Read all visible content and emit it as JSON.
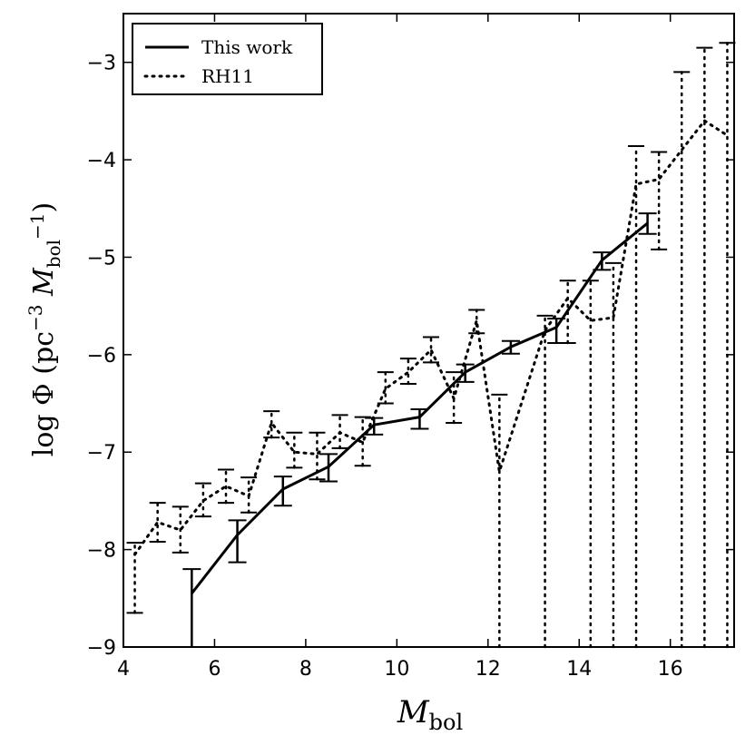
{
  "chart_data": {
    "type": "line",
    "title": "",
    "xlabel": {
      "main": "M",
      "sub": "bol"
    },
    "ylabel": {
      "prefix": "log Φ (pc",
      "exp1": "−3",
      "mid": " M",
      "sub": "bol",
      "exp2": "−1",
      "suffix": ")"
    },
    "xlim": [
      4,
      17.4
    ],
    "ylim": [
      -9,
      -2.5
    ],
    "xticks": [
      4,
      6,
      8,
      10,
      12,
      14,
      16
    ],
    "yticks": [
      -9,
      -8,
      -7,
      -6,
      -5,
      -4,
      -3
    ],
    "xtick_labels": [
      "4",
      "6",
      "8",
      "10",
      "12",
      "14",
      "16"
    ],
    "ytick_labels": [
      "−9",
      "−8",
      "−7",
      "−6",
      "−5",
      "−4",
      "−3"
    ],
    "legend": {
      "placement": "top-left",
      "entries": [
        {
          "label": "This work",
          "style": "solid"
        },
        {
          "label": "RH11",
          "style": "dotted"
        }
      ]
    },
    "series": [
      {
        "name": "This work",
        "style": "solid",
        "x": [
          5.5,
          6.5,
          7.5,
          8.5,
          9.5,
          10.5,
          11.5,
          12.5,
          13.5,
          14.5,
          15.5
        ],
        "y": [
          -8.45,
          -7.85,
          -7.38,
          -7.15,
          -6.72,
          -6.64,
          -6.18,
          -5.92,
          -5.72,
          -5.03,
          -4.65
        ],
        "yerr_low": [
          -9.0,
          -8.13,
          -7.55,
          -7.3,
          -6.82,
          -6.76,
          -6.28,
          -5.99,
          -5.88,
          -5.13,
          -4.76
        ],
        "yerr_high": [
          -8.2,
          -7.7,
          -7.25,
          -7.02,
          -6.65,
          -6.56,
          -6.1,
          -5.86,
          -5.63,
          -4.95,
          -4.55
        ]
      },
      {
        "name": "RH11",
        "style": "dotted",
        "x": [
          4.25,
          4.75,
          5.25,
          5.75,
          6.25,
          6.75,
          7.25,
          7.75,
          8.25,
          8.75,
          9.25,
          9.75,
          10.25,
          10.75,
          11.25,
          11.75,
          12.25,
          13.25,
          13.75,
          14.25,
          14.75,
          15.25,
          15.75,
          16.25,
          16.75,
          17.25
        ],
        "y": [
          -8.05,
          -7.72,
          -7.8,
          -7.5,
          -7.35,
          -7.45,
          -6.7,
          -7.0,
          -7.02,
          -6.8,
          -6.9,
          -6.35,
          -6.18,
          -5.95,
          -6.45,
          -5.65,
          -7.2,
          -5.75,
          -5.42,
          -5.65,
          -5.62,
          -4.25,
          -4.2,
          -3.9,
          -3.6,
          -3.75
        ],
        "yerr_low": [
          -8.65,
          -7.92,
          -8.03,
          -7.66,
          -7.52,
          -7.62,
          -6.85,
          -7.16,
          -7.28,
          -6.96,
          -7.14,
          -6.5,
          -6.3,
          -6.08,
          -6.7,
          -5.78,
          -9.0,
          -9.0,
          -5.88,
          -9.0,
          -9.0,
          -9.0,
          -4.92,
          -9.0,
          -9.0,
          -9.0
        ],
        "yerr_high": [
          -7.93,
          -7.52,
          -7.56,
          -7.32,
          -7.18,
          -7.26,
          -6.58,
          -6.8,
          -6.8,
          -6.62,
          -6.64,
          -6.18,
          -6.04,
          -5.82,
          -6.18,
          -5.54,
          -6.41,
          -5.6,
          -5.24,
          -5.24,
          -5.06,
          -3.86,
          -3.92,
          -3.1,
          -2.85,
          -2.8
        ]
      }
    ]
  }
}
